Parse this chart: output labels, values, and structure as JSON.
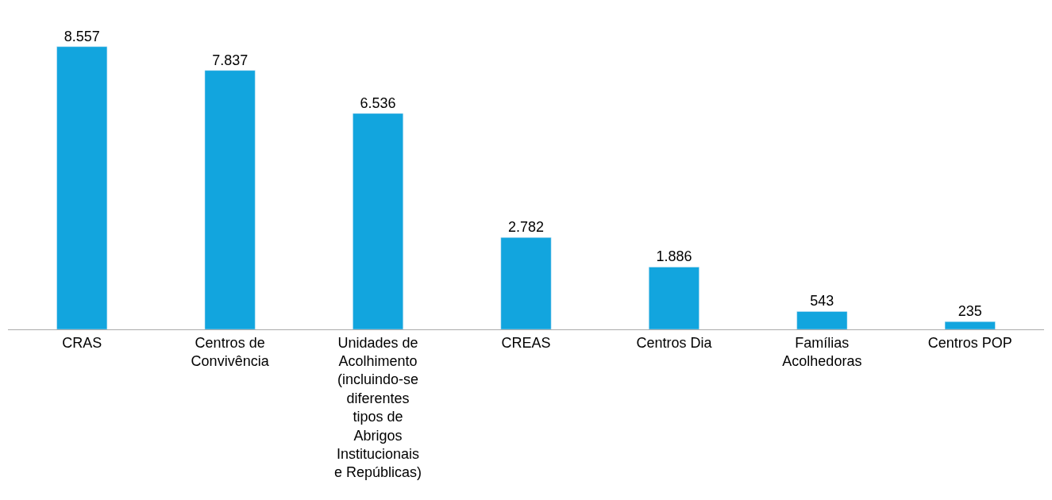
{
  "chart_data": {
    "type": "bar",
    "categories": [
      "CRAS",
      "Centros de Convivência",
      "Unidades de Acolhimento (incluindo-se diferentes tipos de Abrigos Institucionais e Repúblicas)",
      "CREAS",
      "Centros Dia",
      "Famílias Acolhedoras",
      "Centros POP"
    ],
    "values": [
      8557,
      7837,
      6536,
      2782,
      1886,
      543,
      235
    ],
    "value_labels": [
      "8.557",
      "7.837",
      "6.536",
      "2.782",
      "1.886",
      "543",
      "235"
    ],
    "color": "#12a5de"
  }
}
